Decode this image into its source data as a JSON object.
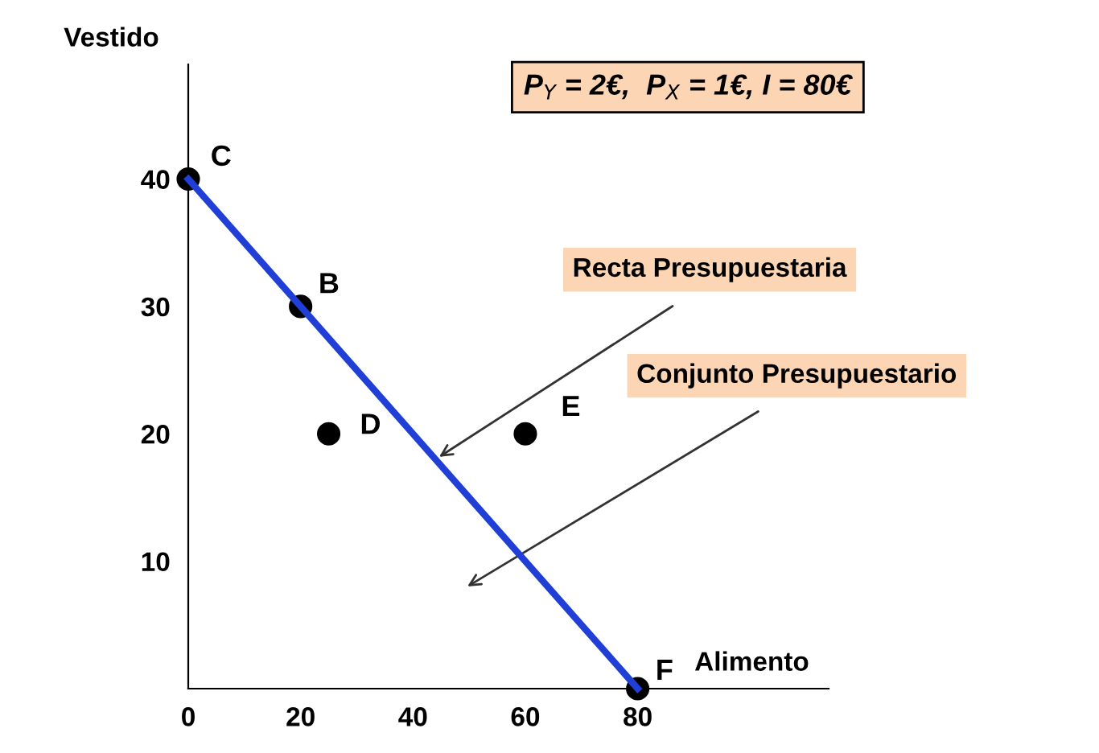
{
  "chart_data": {
    "type": "scatter",
    "title": "P$_{Y}$ = 2€,  P$_{X}$ = 1€, I = 80€",
    "xlabel": "Alimento",
    "ylabel": "Vestido",
    "xlim": [
      0,
      114
    ],
    "ylim": [
      0,
      49
    ],
    "xticks": [
      0,
      20,
      40,
      60,
      80
    ],
    "yticks": [
      10,
      20,
      30,
      40
    ],
    "grid": false,
    "legend": false,
    "series": [
      {
        "type": "line",
        "x": [
          0,
          80
        ],
        "values": [
          40,
          0
        ],
        "color": "#1f3fd6",
        "line_style": "solid",
        "marker": "none"
      },
      {
        "x": [
          0,
          20,
          25,
          60,
          80
        ],
        "values": [
          40,
          30,
          20,
          20,
          0
        ],
        "color": "#000000",
        "marker": "circle"
      }
    ],
    "annotations": [
      {
        "text": "C",
        "x": 0,
        "y": 40
      },
      {
        "text": "B",
        "x": 20,
        "y": 30
      },
      {
        "text": "D",
        "x": 25,
        "y": 20
      },
      {
        "text": "E",
        "x": 60,
        "y": 20
      },
      {
        "text": "F",
        "x": 80,
        "y": 0
      },
      {
        "text": "Recta Presupuestaria",
        "x": 44,
        "y": 18
      },
      "Conjunto Presupuestario"
    ]
  }
}
